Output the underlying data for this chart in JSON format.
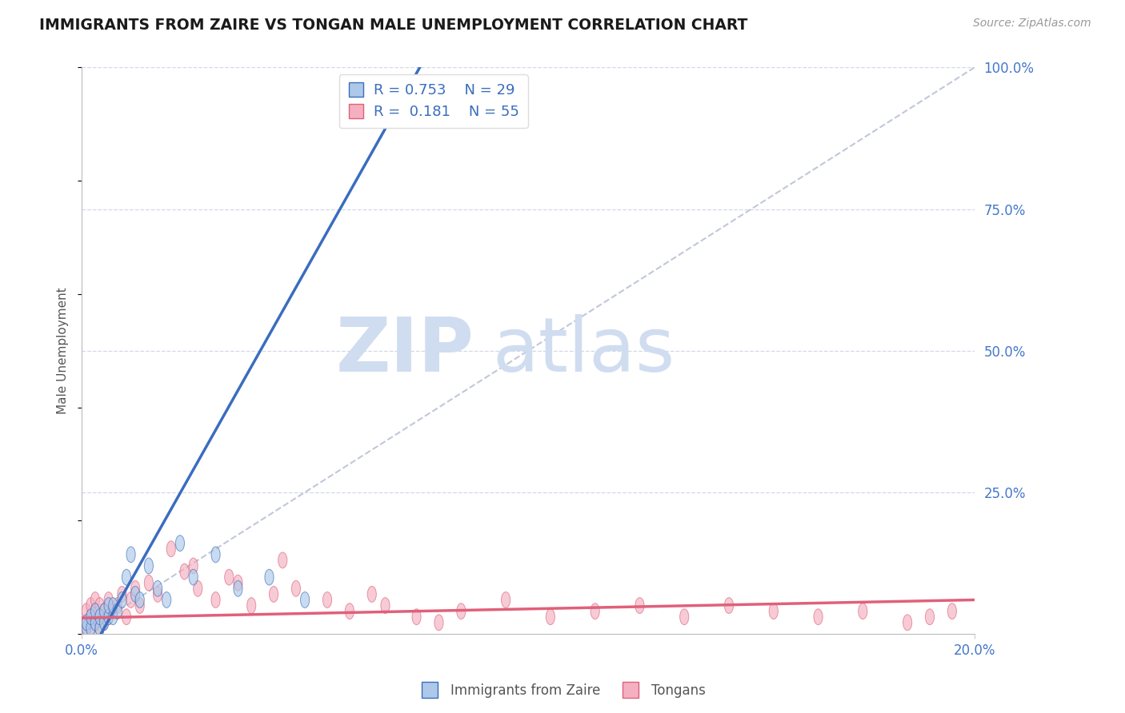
{
  "title": "IMMIGRANTS FROM ZAIRE VS TONGAN MALE UNEMPLOYMENT CORRELATION CHART",
  "source_text": "Source: ZipAtlas.com",
  "ylabel": "Male Unemployment",
  "xlim": [
    0.0,
    0.2
  ],
  "ylim": [
    0.0,
    1.0
  ],
  "ytick_labels_right": [
    "25.0%",
    "50.0%",
    "75.0%",
    "100.0%"
  ],
  "ytick_vals_right": [
    0.25,
    0.5,
    0.75,
    1.0
  ],
  "blue_R": "0.753",
  "blue_N": "29",
  "pink_R": "0.181",
  "pink_N": "55",
  "blue_color": "#adc8e8",
  "blue_line_color": "#3a6dbf",
  "pink_color": "#f4b0c0",
  "pink_line_color": "#e0607a",
  "grid_color": "#d0d8e8",
  "title_color": "#1a1a1a",
  "axis_label_color": "#555555",
  "tick_color": "#4477cc",
  "watermark_color": "#d0ddf0",
  "legend_label_blue": "Immigrants from Zaire",
  "legend_label_pink": "Tongans",
  "blue_line_slope": 14.0,
  "blue_line_intercept": -0.06,
  "pink_line_slope": 0.16,
  "pink_line_intercept": 0.028,
  "blue_points_x": [
    0.001,
    0.001,
    0.002,
    0.002,
    0.003,
    0.003,
    0.004,
    0.004,
    0.005,
    0.005,
    0.006,
    0.006,
    0.007,
    0.007,
    0.008,
    0.009,
    0.01,
    0.011,
    0.012,
    0.013,
    0.015,
    0.017,
    0.019,
    0.022,
    0.025,
    0.03,
    0.035,
    0.042,
    0.05
  ],
  "blue_points_y": [
    0.01,
    0.02,
    0.01,
    0.03,
    0.02,
    0.04,
    0.01,
    0.03,
    0.02,
    0.04,
    0.03,
    0.05,
    0.03,
    0.05,
    0.04,
    0.06,
    0.1,
    0.14,
    0.07,
    0.06,
    0.12,
    0.08,
    0.06,
    0.16,
    0.1,
    0.14,
    0.08,
    0.1,
    0.06
  ],
  "pink_points_x": [
    0.001,
    0.001,
    0.001,
    0.002,
    0.002,
    0.002,
    0.003,
    0.003,
    0.003,
    0.004,
    0.004,
    0.004,
    0.005,
    0.005,
    0.006,
    0.006,
    0.007,
    0.008,
    0.009,
    0.01,
    0.011,
    0.012,
    0.013,
    0.015,
    0.017,
    0.02,
    0.023,
    0.026,
    0.03,
    0.033,
    0.038,
    0.043,
    0.048,
    0.055,
    0.06,
    0.068,
    0.075,
    0.085,
    0.095,
    0.105,
    0.115,
    0.125,
    0.135,
    0.145,
    0.155,
    0.165,
    0.175,
    0.185,
    0.19,
    0.195,
    0.025,
    0.035,
    0.045,
    0.065,
    0.08
  ],
  "pink_points_y": [
    0.01,
    0.02,
    0.04,
    0.01,
    0.03,
    0.05,
    0.02,
    0.04,
    0.06,
    0.01,
    0.03,
    0.05,
    0.02,
    0.04,
    0.03,
    0.06,
    0.04,
    0.05,
    0.07,
    0.03,
    0.06,
    0.08,
    0.05,
    0.09,
    0.07,
    0.15,
    0.11,
    0.08,
    0.06,
    0.1,
    0.05,
    0.07,
    0.08,
    0.06,
    0.04,
    0.05,
    0.03,
    0.04,
    0.06,
    0.03,
    0.04,
    0.05,
    0.03,
    0.05,
    0.04,
    0.03,
    0.04,
    0.02,
    0.03,
    0.04,
    0.12,
    0.09,
    0.13,
    0.07,
    0.02
  ],
  "figsize": [
    14.06,
    8.92
  ],
  "dpi": 100
}
